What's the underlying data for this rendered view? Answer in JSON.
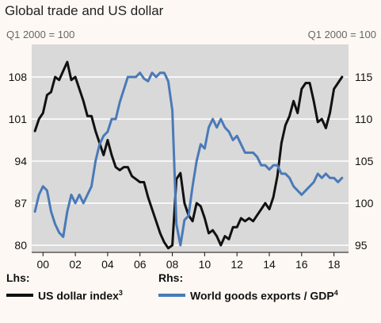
{
  "colors": {
    "usd": "#111111",
    "exports": "#4a7ab8",
    "plot_bg": "#d9d9d9",
    "grid": "#ffffff"
  },
  "chart_data": {
    "type": "line",
    "title": "Global trade and US dollar",
    "unit_left": "Q1 2000 = 100",
    "unit_right": "Q1 2000 = 100",
    "x_ticks": [
      "00",
      "02",
      "04",
      "06",
      "08",
      "10",
      "12",
      "14",
      "16",
      "18"
    ],
    "y_left": {
      "ticks": [
        "80",
        "87",
        "94",
        "101",
        "108"
      ],
      "ylim": [
        80,
        108
      ]
    },
    "y_right": {
      "ticks": [
        "95",
        "100",
        "105",
        "110",
        "115"
      ],
      "ylim": [
        95,
        115
      ]
    },
    "legend": {
      "lhs_heading": "Lhs:",
      "rhs_heading": "Rhs:",
      "usd_label": "US dollar index",
      "usd_note": "3",
      "exports_label": "World goods exports / GDP",
      "exports_note": "4"
    },
    "series": [
      {
        "axis": "left",
        "x": [
          1999.5,
          1999.75,
          2000,
          2000.25,
          2000.5,
          2000.75,
          2001,
          2001.25,
          2001.5,
          2001.75,
          2002,
          2002.25,
          2002.5,
          2002.75,
          2003,
          2003.25,
          2003.5,
          2003.75,
          2004,
          2004.25,
          2004.5,
          2004.75,
          2005,
          2005.25,
          2005.5,
          2005.75,
          2006,
          2006.25,
          2006.5,
          2006.75,
          2007,
          2007.25,
          2007.5,
          2007.75,
          2008,
          2008.25,
          2008.5,
          2008.75,
          2009,
          2009.25,
          2009.5,
          2009.75,
          2010,
          2010.25,
          2010.5,
          2010.75,
          2011,
          2011.25,
          2011.5,
          2011.75,
          2012,
          2012.25,
          2012.5,
          2012.75,
          2013,
          2013.25,
          2013.5,
          2013.75,
          2014,
          2014.25,
          2014.5,
          2014.75,
          2015,
          2015.25,
          2015.5,
          2015.75,
          2016,
          2016.25,
          2016.5,
          2016.75,
          2017,
          2017.25,
          2017.5,
          2017.75,
          2018,
          2018.25,
          2018.5
        ],
        "values": [
          99,
          101,
          102,
          105,
          105.5,
          108,
          107.5,
          109,
          110.5,
          107.5,
          108,
          106,
          104,
          101.5,
          101.5,
          99,
          97,
          95,
          97.5,
          95,
          93,
          92.5,
          93,
          93,
          91.5,
          91,
          90.5,
          90.5,
          88,
          86,
          84,
          82,
          80.5,
          79.5,
          80,
          91,
          92,
          87,
          85,
          84,
          87,
          86.5,
          84.5,
          82,
          82.5,
          81.5,
          80,
          81.5,
          81,
          83,
          83,
          84.5,
          84,
          84.5,
          84,
          85,
          86,
          87,
          86,
          88,
          91.5,
          97,
          100,
          101.5,
          104,
          102,
          106,
          107,
          107,
          104,
          100.5,
          101,
          99.5,
          102,
          106,
          107,
          108
        ]
      },
      {
        "axis": "right",
        "x": [
          1999.5,
          1999.75,
          2000,
          2000.25,
          2000.5,
          2000.75,
          2001,
          2001.25,
          2001.5,
          2001.75,
          2002,
          2002.25,
          2002.5,
          2002.75,
          2003,
          2003.25,
          2003.5,
          2003.75,
          2004,
          2004.25,
          2004.5,
          2004.75,
          2005,
          2005.25,
          2005.5,
          2005.75,
          2006,
          2006.25,
          2006.5,
          2006.75,
          2007,
          2007.25,
          2007.5,
          2007.75,
          2008,
          2008.25,
          2008.5,
          2008.75,
          2009,
          2009.25,
          2009.5,
          2009.75,
          2010,
          2010.25,
          2010.5,
          2010.75,
          2011,
          2011.25,
          2011.5,
          2011.75,
          2012,
          2012.25,
          2012.5,
          2012.75,
          2013,
          2013.25,
          2013.5,
          2013.75,
          2014,
          2014.25,
          2014.5,
          2014.75,
          2015,
          2015.25,
          2015.5,
          2015.75,
          2016,
          2016.25,
          2016.5,
          2016.75,
          2017,
          2017.25,
          2017.5,
          2017.75,
          2018,
          2018.25,
          2018.5
        ],
        "values": [
          99,
          101,
          102,
          101.5,
          99,
          97.5,
          96.5,
          96,
          99,
          101,
          100,
          101,
          100,
          101,
          102,
          105,
          107,
          108,
          108.5,
          110,
          110,
          112,
          113.5,
          115,
          115,
          115,
          115.5,
          114.8,
          114.5,
          115.5,
          115,
          115.5,
          115.5,
          114.5,
          111,
          97.5,
          95,
          98,
          98.5,
          102,
          105,
          107,
          106.5,
          109,
          110,
          109,
          110,
          109,
          108.5,
          107.5,
          108,
          107,
          106,
          106,
          106,
          105.5,
          104.5,
          104.5,
          104,
          104.5,
          104.5,
          103.5,
          103.5,
          103,
          102,
          101.5,
          101,
          101.5,
          102,
          102.5,
          103.5,
          103,
          103.5,
          103,
          103,
          102.5,
          103
        ]
      }
    ]
  }
}
